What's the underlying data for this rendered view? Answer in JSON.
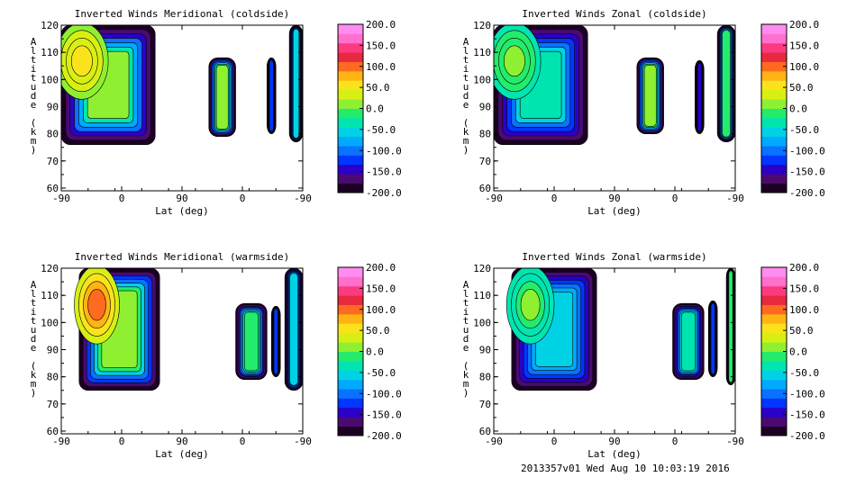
{
  "footer": {
    "stamp": "2013357v01 Wed Aug 10 10:03:19 2016"
  },
  "chart_data": [
    {
      "type": "heatmap",
      "title": "Inverted Winds Meridional (coldside)",
      "xlabel": "Lat (deg)",
      "ylabel": "Altitude (km)",
      "xticks": [
        "-90",
        "0",
        "90",
        "0",
        "-90"
      ],
      "yticks": [
        "60",
        "70",
        "80",
        "90",
        "100",
        "110",
        "120"
      ],
      "ylim": [
        59,
        120
      ],
      "colorbar": {
        "min": -200,
        "max": 200,
        "labels": [
          "200.0",
          "150.0",
          "100.0",
          "50.0",
          "0.0",
          "-50.0",
          "-100.0",
          "-150.0",
          "-200.0"
        ]
      },
      "regions": [
        {
          "x0": -90,
          "x1": 15,
          "y0": 76,
          "y1": 120,
          "interior": 0,
          "warm": 55
        },
        {
          "x0": 75,
          "x1": 105,
          "y0": 79,
          "y1": 108,
          "interior": 5
        },
        {
          "x0": 140,
          "x1": 150,
          "y0": 80,
          "y1": 108,
          "interior": -120
        },
        {
          "x0": 165,
          "x1": 180,
          "y0": 77,
          "y1": 120,
          "interior": -60
        }
      ]
    },
    {
      "type": "heatmap",
      "title": "Inverted Winds Zonal (coldside)",
      "xlabel": "Lat (deg)",
      "ylabel": "Altitude (km)",
      "xticks": [
        "-90",
        "0",
        "90",
        "0",
        "-90"
      ],
      "yticks": [
        "60",
        "70",
        "80",
        "90",
        "100",
        "110",
        "120"
      ],
      "ylim": [
        59,
        120
      ],
      "colorbar": {
        "min": -200,
        "max": 200,
        "labels": [
          "200.0",
          "150.0",
          "100.0",
          "50.0",
          "0.0",
          "-50.0",
          "-100.0",
          "-150.0",
          "-200.0"
        ]
      },
      "regions": [
        {
          "x0": -90,
          "x1": 15,
          "y0": 76,
          "y1": 120,
          "interior": -40,
          "warm": 10
        },
        {
          "x0": 70,
          "x1": 100,
          "y0": 80,
          "y1": 108,
          "interior": 20
        },
        {
          "x0": 135,
          "x1": 145,
          "y0": 80,
          "y1": 107,
          "interior": -150
        },
        {
          "x0": 160,
          "x1": 180,
          "y0": 77,
          "y1": 120,
          "interior": -20
        }
      ]
    },
    {
      "type": "heatmap",
      "title": "Inverted Winds Meridional (warmside)",
      "xlabel": "Lat (deg)",
      "ylabel": "Altitude (km)",
      "xticks": [
        "-90",
        "0",
        "90",
        "0",
        "-90"
      ],
      "yticks": [
        "60",
        "70",
        "80",
        "90",
        "100",
        "110",
        "120"
      ],
      "ylim": [
        59,
        120
      ],
      "colorbar": {
        "min": -200,
        "max": 200,
        "labels": [
          "200.0",
          "150.0",
          "100.0",
          "50.0",
          "0.0",
          "-50.0",
          "-100.0",
          "-150.0",
          "-200.0"
        ]
      },
      "regions": [
        {
          "x0": -70,
          "x1": 20,
          "y0": 75,
          "y1": 120,
          "interior": 15,
          "warm": 90
        },
        {
          "x0": 105,
          "x1": 140,
          "y0": 79,
          "y1": 107,
          "interior": -10
        },
        {
          "x0": 145,
          "x1": 155,
          "y0": 80,
          "y1": 106,
          "interior": -130
        },
        {
          "x0": 160,
          "x1": 180,
          "y0": 75,
          "y1": 120,
          "interior": -60
        }
      ]
    },
    {
      "type": "heatmap",
      "title": "Inverted Winds Zonal (warmside)",
      "xlabel": "Lat (deg)",
      "ylabel": "Altitude (km)",
      "xticks": [
        "-90",
        "0",
        "90",
        "0",
        "-90"
      ],
      "yticks": [
        "60",
        "70",
        "80",
        "90",
        "100",
        "110",
        "120"
      ],
      "ylim": [
        59,
        120
      ],
      "colorbar": {
        "min": -200,
        "max": 200,
        "labels": [
          "200.0",
          "150.0",
          "100.0",
          "50.0",
          "0.0",
          "-50.0",
          "-100.0",
          "-150.0",
          "-200.0"
        ]
      },
      "regions": [
        {
          "x0": -70,
          "x1": 25,
          "y0": 75,
          "y1": 120,
          "interior": -60,
          "warm": 10
        },
        {
          "x0": 110,
          "x1": 145,
          "y0": 79,
          "y1": 107,
          "interior": -30
        },
        {
          "x0": 150,
          "x1": 160,
          "y0": 80,
          "y1": 108,
          "interior": -120
        },
        {
          "x0": 170,
          "x1": 180,
          "y0": 77,
          "y1": 120,
          "interior": -10
        }
      ]
    }
  ]
}
